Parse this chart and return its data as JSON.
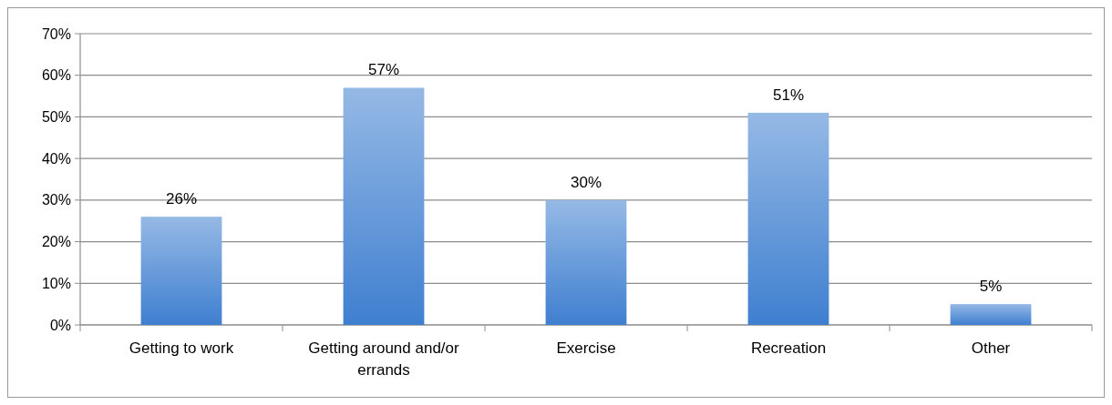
{
  "chart_data": {
    "type": "bar",
    "categories": [
      "Getting to work",
      "Getting around and/or errands",
      "Exercise",
      "Recreation",
      "Other"
    ],
    "values": [
      26,
      57,
      30,
      51,
      5
    ],
    "color": "#3f7fd0",
    "value_labels": [
      "26%",
      "57%",
      "30%",
      "51%",
      "5%"
    ],
    "ylim": [
      0,
      70
    ],
    "yticks": [
      {
        "value": 0,
        "label": "0%"
      },
      {
        "value": 10,
        "label": "10%"
      },
      {
        "value": 20,
        "label": "20%"
      },
      {
        "value": 30,
        "label": "30%"
      },
      {
        "value": 40,
        "label": "40%"
      },
      {
        "value": 50,
        "label": "50%"
      },
      {
        "value": 60,
        "label": "60%"
      },
      {
        "value": 70,
        "label": "70%"
      }
    ],
    "grid": "y"
  }
}
